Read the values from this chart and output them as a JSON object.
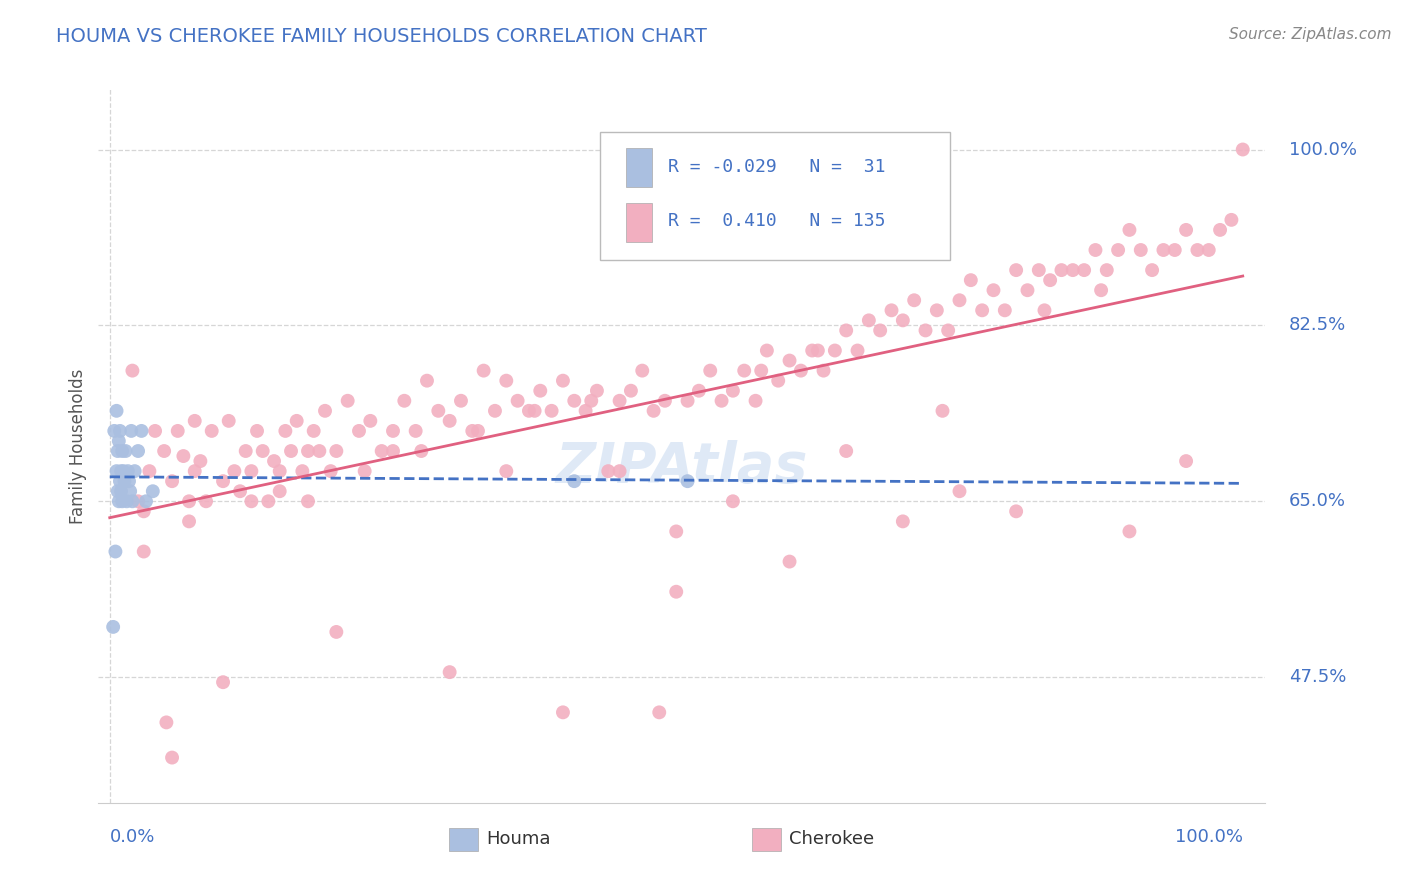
{
  "title": "HOUMA VS CHEROKEE FAMILY HOUSEHOLDS CORRELATION CHART",
  "source": "Source: ZipAtlas.com",
  "ylabel": "Family Households",
  "y_tick_vals": [
    0.475,
    0.65,
    0.825,
    1.0
  ],
  "y_tick_labels": [
    "47.5%",
    "65.0%",
    "82.5%",
    "100.0%"
  ],
  "houma_color": "#aabfe0",
  "cherokee_color": "#f2afc0",
  "houma_line_color": "#4472c4",
  "cherokee_line_color": "#e06080",
  "title_color": "#4472c4",
  "label_color": "#4472c4",
  "source_color": "#888888",
  "grid_color": "#cccccc",
  "background_color": "#ffffff",
  "watermark_color": "#c5d8f0",
  "houma_x": [
    0.003,
    0.004,
    0.005,
    0.006,
    0.006,
    0.007,
    0.007,
    0.008,
    0.008,
    0.009,
    0.009,
    0.01,
    0.01,
    0.011,
    0.011,
    0.012,
    0.013,
    0.014,
    0.015,
    0.016,
    0.017,
    0.018,
    0.019,
    0.02,
    0.022,
    0.025,
    0.028,
    0.032,
    0.038,
    0.41,
    0.51
  ],
  "houma_y": [
    0.525,
    0.72,
    0.6,
    0.68,
    0.74,
    0.66,
    0.7,
    0.65,
    0.71,
    0.67,
    0.72,
    0.66,
    0.68,
    0.7,
    0.65,
    0.68,
    0.67,
    0.7,
    0.65,
    0.68,
    0.67,
    0.66,
    0.72,
    0.65,
    0.68,
    0.7,
    0.72,
    0.65,
    0.66,
    0.67,
    0.67
  ],
  "cherokee_x": [
    0.02,
    0.025,
    0.03,
    0.035,
    0.04,
    0.048,
    0.055,
    0.06,
    0.065,
    0.07,
    0.075,
    0.08,
    0.085,
    0.09,
    0.1,
    0.105,
    0.11,
    0.115,
    0.12,
    0.125,
    0.13,
    0.135,
    0.14,
    0.145,
    0.15,
    0.155,
    0.16,
    0.165,
    0.17,
    0.175,
    0.18,
    0.185,
    0.19,
    0.195,
    0.2,
    0.21,
    0.22,
    0.23,
    0.24,
    0.25,
    0.26,
    0.27,
    0.28,
    0.29,
    0.3,
    0.31,
    0.32,
    0.33,
    0.34,
    0.35,
    0.36,
    0.37,
    0.38,
    0.39,
    0.4,
    0.41,
    0.42,
    0.43,
    0.44,
    0.45,
    0.46,
    0.47,
    0.48,
    0.49,
    0.5,
    0.51,
    0.52,
    0.53,
    0.54,
    0.55,
    0.56,
    0.57,
    0.58,
    0.59,
    0.6,
    0.61,
    0.62,
    0.63,
    0.64,
    0.65,
    0.66,
    0.67,
    0.68,
    0.69,
    0.7,
    0.71,
    0.72,
    0.73,
    0.74,
    0.75,
    0.76,
    0.77,
    0.78,
    0.79,
    0.8,
    0.81,
    0.82,
    0.83,
    0.84,
    0.85,
    0.86,
    0.87,
    0.88,
    0.89,
    0.9,
    0.91,
    0.92,
    0.93,
    0.94,
    0.95,
    0.96,
    0.97,
    0.98,
    0.99,
    1.0,
    0.05,
    0.1,
    0.2,
    0.3,
    0.4,
    0.5,
    0.6,
    0.7,
    0.8,
    0.9,
    0.15,
    0.35,
    0.55,
    0.75,
    0.95,
    0.25,
    0.45,
    0.65,
    0.03,
    0.07,
    0.125,
    0.175,
    0.225,
    0.275,
    0.325,
    0.075,
    0.375,
    0.575,
    0.875,
    0.425,
    0.625,
    0.825,
    0.055,
    0.485,
    0.735
  ],
  "cherokee_y": [
    0.78,
    0.65,
    0.64,
    0.68,
    0.72,
    0.7,
    0.67,
    0.72,
    0.695,
    0.65,
    0.73,
    0.69,
    0.65,
    0.72,
    0.67,
    0.73,
    0.68,
    0.66,
    0.7,
    0.68,
    0.72,
    0.7,
    0.65,
    0.69,
    0.68,
    0.72,
    0.7,
    0.73,
    0.68,
    0.65,
    0.72,
    0.7,
    0.74,
    0.68,
    0.7,
    0.75,
    0.72,
    0.73,
    0.7,
    0.72,
    0.75,
    0.72,
    0.77,
    0.74,
    0.73,
    0.75,
    0.72,
    0.78,
    0.74,
    0.77,
    0.75,
    0.74,
    0.76,
    0.74,
    0.77,
    0.75,
    0.74,
    0.76,
    0.68,
    0.75,
    0.76,
    0.78,
    0.74,
    0.75,
    0.62,
    0.75,
    0.76,
    0.78,
    0.75,
    0.76,
    0.78,
    0.75,
    0.8,
    0.77,
    0.79,
    0.78,
    0.8,
    0.78,
    0.8,
    0.82,
    0.8,
    0.83,
    0.82,
    0.84,
    0.83,
    0.85,
    0.82,
    0.84,
    0.82,
    0.85,
    0.87,
    0.84,
    0.86,
    0.84,
    0.88,
    0.86,
    0.88,
    0.87,
    0.88,
    0.88,
    0.88,
    0.9,
    0.88,
    0.9,
    0.92,
    0.9,
    0.88,
    0.9,
    0.9,
    0.92,
    0.9,
    0.9,
    0.92,
    0.93,
    1.0,
    0.43,
    0.47,
    0.52,
    0.48,
    0.44,
    0.56,
    0.59,
    0.63,
    0.64,
    0.62,
    0.66,
    0.68,
    0.65,
    0.66,
    0.69,
    0.7,
    0.68,
    0.7,
    0.6,
    0.63,
    0.65,
    0.7,
    0.68,
    0.7,
    0.72,
    0.68,
    0.74,
    0.78,
    0.86,
    0.75,
    0.8,
    0.84,
    0.395,
    0.44,
    0.74
  ]
}
